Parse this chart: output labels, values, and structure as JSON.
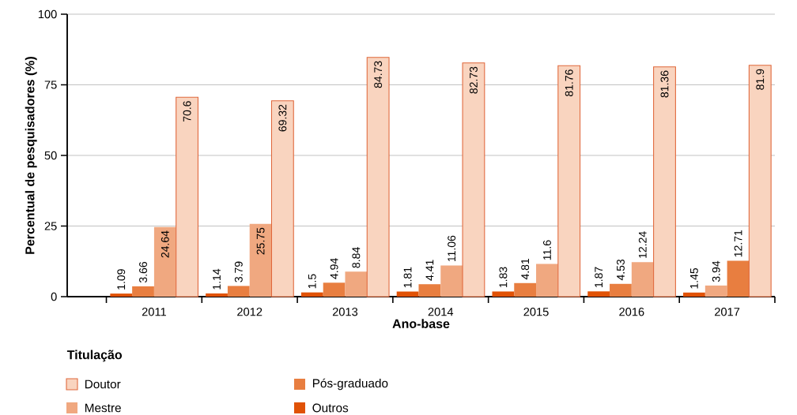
{
  "chart_data": {
    "type": "bar",
    "xlabel": "Ano-base",
    "ylabel": "Percentual de pesquisadores (%)",
    "legend_title": "Titulação",
    "categories": [
      "2011",
      "2012",
      "2013",
      "2014",
      "2015",
      "2016",
      "2017"
    ],
    "series": [
      {
        "name": "Outros",
        "color": "#e05206",
        "values": [
          1.09,
          1.14,
          1.5,
          1.81,
          1.83,
          1.87,
          1.45
        ]
      },
      {
        "name": "Pós-graduado",
        "color": "#e87e40",
        "colors": [
          "#e87e40",
          "#e87e40",
          "#e87e40",
          "#e87e40",
          "#e87e40",
          "#e87e40",
          "#f0a880"
        ],
        "values": [
          3.66,
          3.79,
          4.94,
          4.41,
          4.81,
          4.53,
          3.94
        ]
      },
      {
        "name": "Mestre",
        "color": "#f0a880",
        "colors": [
          "#f0a880",
          "#f0a880",
          "#f0a880",
          "#f0a880",
          "#f0a880",
          "#f0a880",
          "#e87e40"
        ],
        "values": [
          24.64,
          25.75,
          8.84,
          11.06,
          11.6,
          12.24,
          12.71
        ]
      },
      {
        "name": "Doutor",
        "color": "#f9d4bf",
        "values": [
          70.6,
          69.32,
          84.73,
          82.73,
          81.76,
          81.36,
          81.9
        ]
      }
    ],
    "ylim": [
      0,
      100
    ],
    "yticks": [
      0,
      25,
      50,
      75,
      100
    ],
    "grid": "y",
    "legend": "bottom",
    "data_labels": true
  }
}
